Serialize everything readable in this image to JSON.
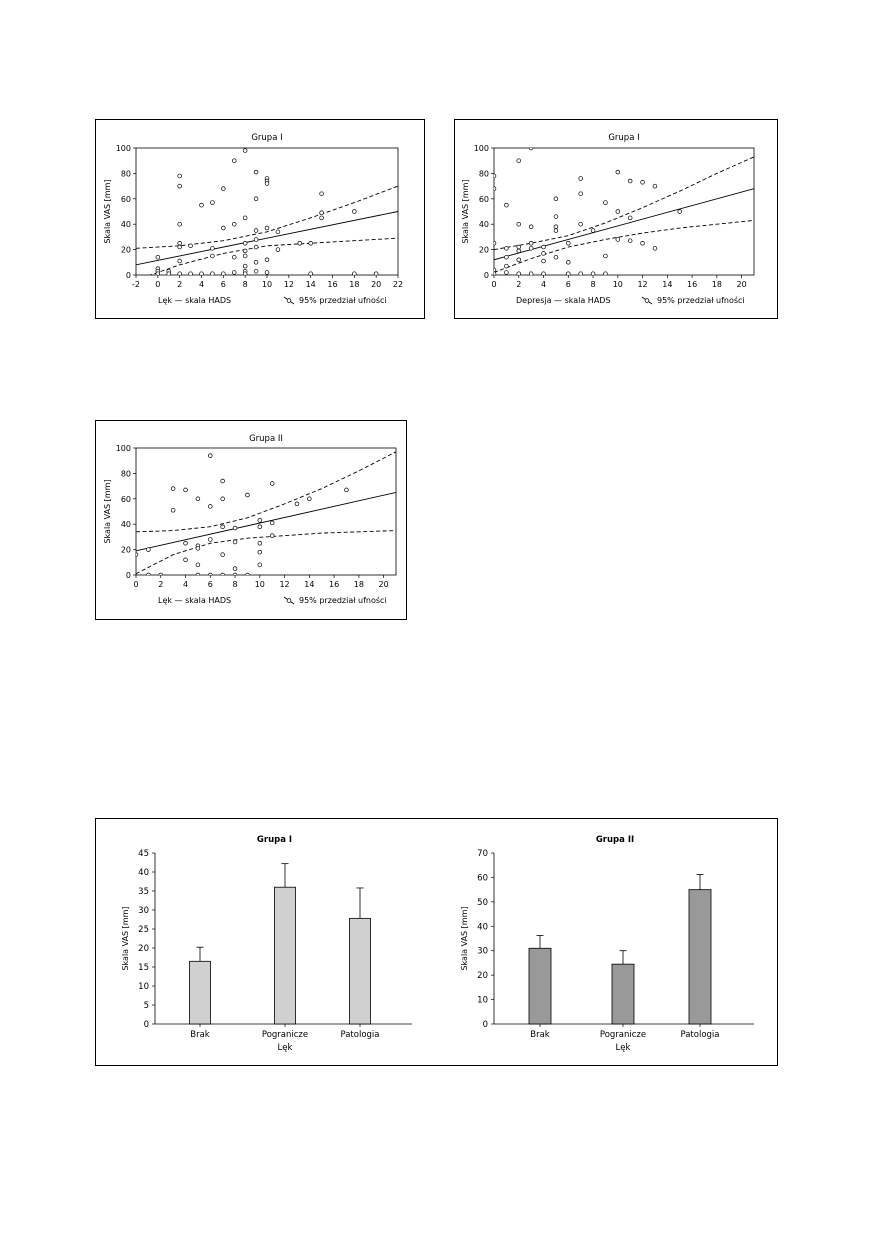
{
  "charts": {
    "scatter_g1_lek": {
      "type": "scatter",
      "title": "Grupa I",
      "xlabel": "Lęk — skala HADS",
      "ylabel": "Skala VAS [mm]",
      "legend_text": "95% przedział ufności",
      "legend_placement": "bottom-right",
      "xlim": [
        -2,
        22
      ],
      "ylim": [
        0,
        100
      ],
      "x_ticks": [
        -2,
        0,
        2,
        4,
        6,
        8,
        10,
        12,
        14,
        16,
        18,
        20,
        22
      ],
      "y_ticks": [
        0,
        20,
        40,
        60,
        80,
        100
      ],
      "points": [
        [
          0,
          5
        ],
        [
          0,
          14
        ],
        [
          0,
          3
        ],
        [
          0,
          1
        ],
        [
          1,
          3
        ],
        [
          1,
          1
        ],
        [
          2,
          78
        ],
        [
          2,
          70
        ],
        [
          2,
          40
        ],
        [
          2,
          25
        ],
        [
          2,
          22
        ],
        [
          2,
          11
        ],
        [
          2,
          1
        ],
        [
          3,
          23
        ],
        [
          3,
          1
        ],
        [
          4,
          55
        ],
        [
          4,
          1
        ],
        [
          5,
          57
        ],
        [
          5,
          1
        ],
        [
          5,
          21
        ],
        [
          5,
          15
        ],
        [
          6,
          68
        ],
        [
          6,
          37
        ],
        [
          6,
          1
        ],
        [
          7,
          90
        ],
        [
          7,
          40
        ],
        [
          7,
          14
        ],
        [
          7,
          2
        ],
        [
          8,
          98
        ],
        [
          8,
          45
        ],
        [
          8,
          25
        ],
        [
          8,
          19
        ],
        [
          8,
          15
        ],
        [
          8,
          7
        ],
        [
          8,
          3
        ],
        [
          8,
          1
        ],
        [
          9,
          81
        ],
        [
          9,
          60
        ],
        [
          9,
          35
        ],
        [
          9,
          28
        ],
        [
          9,
          22
        ],
        [
          9,
          10
        ],
        [
          9,
          3
        ],
        [
          10,
          76
        ],
        [
          10,
          74
        ],
        [
          10,
          72
        ],
        [
          10,
          37
        ],
        [
          10,
          12
        ],
        [
          10,
          2
        ],
        [
          11,
          34
        ],
        [
          11,
          20
        ],
        [
          13,
          25
        ],
        [
          14,
          25
        ],
        [
          14,
          1
        ],
        [
          15,
          64
        ],
        [
          15,
          49
        ],
        [
          15,
          45
        ],
        [
          18,
          50
        ],
        [
          18,
          1
        ],
        [
          20,
          1
        ]
      ],
      "regression": {
        "x": [
          -2,
          22
        ],
        "y": [
          8,
          50
        ]
      },
      "ci_upper": {
        "x": [
          -2,
          2,
          6,
          10,
          14,
          18,
          22
        ],
        "y": [
          21,
          23,
          27,
          34,
          45,
          57,
          70
        ]
      },
      "ci_lower": {
        "x": [
          -2,
          2,
          6,
          10,
          14,
          18,
          22
        ],
        "y": [
          -4,
          8,
          17,
          23,
          25,
          27,
          29
        ]
      }
    },
    "scatter_g1_depresja": {
      "type": "scatter",
      "title": "Grupa I",
      "xlabel": "Depresja — skala HADS",
      "ylabel": "Skala VAS [mm]",
      "legend_text": "95% przedział ufności",
      "legend_placement": "bottom-right",
      "xlim": [
        0,
        21
      ],
      "ylim": [
        0,
        100
      ],
      "x_ticks": [
        0,
        2,
        4,
        6,
        8,
        10,
        12,
        14,
        16,
        18,
        20
      ],
      "y_ticks": [
        0,
        20,
        40,
        60,
        80,
        100
      ],
      "points": [
        [
          0,
          78
        ],
        [
          0,
          68
        ],
        [
          0,
          25
        ],
        [
          0,
          4
        ],
        [
          0,
          1
        ],
        [
          1,
          55
        ],
        [
          1,
          21
        ],
        [
          1,
          14
        ],
        [
          1,
          7
        ],
        [
          1,
          2
        ],
        [
          2,
          90
        ],
        [
          2,
          40
        ],
        [
          2,
          22
        ],
        [
          2,
          19
        ],
        [
          2,
          12
        ],
        [
          2,
          1
        ],
        [
          3,
          100
        ],
        [
          3,
          38
        ],
        [
          3,
          25
        ],
        [
          3,
          21
        ],
        [
          3,
          1
        ],
        [
          4,
          22
        ],
        [
          4,
          17
        ],
        [
          4,
          11
        ],
        [
          4,
          1
        ],
        [
          5,
          60
        ],
        [
          5,
          46
        ],
        [
          5,
          38
        ],
        [
          5,
          35
        ],
        [
          5,
          14
        ],
        [
          6,
          25
        ],
        [
          6,
          10
        ],
        [
          6,
          1
        ],
        [
          7,
          76
        ],
        [
          7,
          64
        ],
        [
          7,
          40
        ],
        [
          7,
          1
        ],
        [
          8,
          35
        ],
        [
          8,
          1
        ],
        [
          9,
          57
        ],
        [
          9,
          15
        ],
        [
          9,
          1
        ],
        [
          10,
          81
        ],
        [
          10,
          50
        ],
        [
          10,
          28
        ],
        [
          11,
          74
        ],
        [
          11,
          45
        ],
        [
          11,
          27
        ],
        [
          12,
          73
        ],
        [
          12,
          25
        ],
        [
          13,
          70
        ],
        [
          13,
          21
        ],
        [
          15,
          50
        ]
      ],
      "regression": {
        "x": [
          0,
          21
        ],
        "y": [
          12,
          68
        ]
      },
      "ci_upper": {
        "x": [
          0,
          3,
          6,
          9,
          12,
          15,
          18,
          21
        ],
        "y": [
          20,
          25,
          31,
          41,
          53,
          66,
          80,
          93
        ]
      },
      "ci_lower": {
        "x": [
          0,
          3,
          6,
          9,
          12,
          15,
          18,
          21
        ],
        "y": [
          2,
          13,
          22,
          28,
          33,
          37,
          40,
          43
        ]
      }
    },
    "scatter_g2_lek": {
      "type": "scatter",
      "title": "Grupa II",
      "xlabel": "Lęk — skala HADS",
      "ylabel": "Skala VAS [mm]",
      "legend_text": "95% przedział ufności",
      "legend_placement": "bottom-right",
      "xlim": [
        0,
        21
      ],
      "ylim": [
        0,
        100
      ],
      "x_ticks": [
        0,
        2,
        4,
        6,
        8,
        10,
        12,
        14,
        16,
        18,
        20
      ],
      "y_ticks": [
        0,
        20,
        40,
        60,
        80,
        100
      ],
      "points": [
        [
          0,
          16
        ],
        [
          1,
          20
        ],
        [
          1,
          0
        ],
        [
          2,
          0
        ],
        [
          3,
          68
        ],
        [
          3,
          51
        ],
        [
          4,
          67
        ],
        [
          4,
          25
        ],
        [
          4,
          12
        ],
        [
          5,
          60
        ],
        [
          5,
          23
        ],
        [
          5,
          21
        ],
        [
          5,
          8
        ],
        [
          5,
          0
        ],
        [
          6,
          94
        ],
        [
          6,
          54
        ],
        [
          6,
          28
        ],
        [
          6,
          0
        ],
        [
          7,
          74
        ],
        [
          7,
          60
        ],
        [
          7,
          38
        ],
        [
          7,
          16
        ],
        [
          7,
          0
        ],
        [
          8,
          37
        ],
        [
          8,
          26
        ],
        [
          8,
          5
        ],
        [
          8,
          0
        ],
        [
          9,
          63
        ],
        [
          9,
          0
        ],
        [
          10,
          43
        ],
        [
          10,
          38
        ],
        [
          10,
          25
        ],
        [
          10,
          18
        ],
        [
          10,
          8
        ],
        [
          11,
          72
        ],
        [
          11,
          41
        ],
        [
          11,
          31
        ],
        [
          13,
          56
        ],
        [
          14,
          60
        ],
        [
          17,
          67
        ]
      ],
      "regression": {
        "x": [
          0,
          21
        ],
        "y": [
          19,
          65
        ]
      },
      "ci_upper": {
        "x": [
          0,
          3,
          6,
          9,
          12,
          15,
          18,
          21
        ],
        "y": [
          34,
          35,
          38,
          45,
          56,
          68,
          82,
          97
        ]
      },
      "ci_lower": {
        "x": [
          0,
          3,
          6,
          9,
          12,
          15,
          18,
          21
        ],
        "y": [
          1,
          16,
          25,
          29,
          31,
          33,
          34,
          35
        ]
      }
    },
    "bar_g1": {
      "type": "bar",
      "title": "Grupa I",
      "xlabel": "Lęk",
      "ylabel": "Skala VAS [mm]",
      "categories": [
        "Brak",
        "Pogranicze",
        "Patologia"
      ],
      "values": [
        16.5,
        36,
        27.8
      ],
      "error_upper": [
        20.2,
        42.2,
        35.8
      ],
      "ylim": [
        0,
        45
      ],
      "y_ticks": [
        0,
        5,
        10,
        15,
        20,
        25,
        30,
        35,
        40,
        45
      ],
      "bar_color": "#d0d0d0"
    },
    "bar_g2": {
      "type": "bar",
      "title": "Grupa II",
      "xlabel": "Lęk",
      "ylabel": "Skala VAS [mm]",
      "categories": [
        "Brak",
        "Pogranicze",
        "Patologia"
      ],
      "values": [
        31,
        24.5,
        55
      ],
      "error_upper": [
        36.2,
        30,
        61.2
      ],
      "ylim": [
        0,
        70
      ],
      "y_ticks": [
        0,
        10,
        20,
        30,
        40,
        50,
        60,
        70
      ],
      "bar_color": "#999999"
    }
  }
}
